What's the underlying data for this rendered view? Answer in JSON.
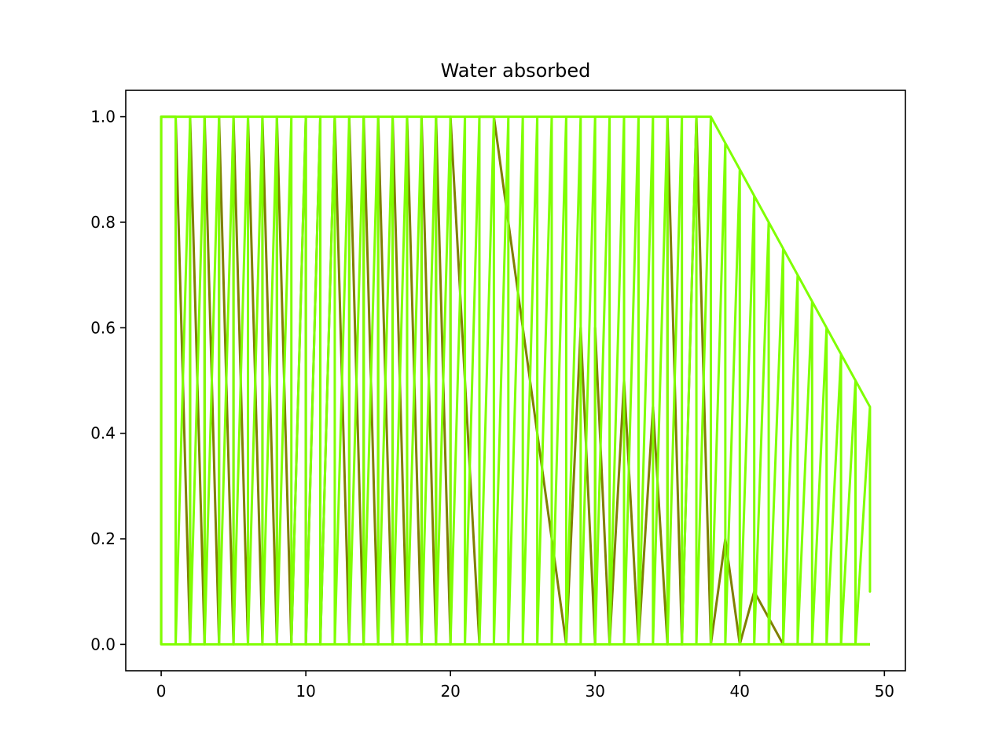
{
  "chart_data": {
    "type": "line",
    "title": "Water absorbed",
    "xlabel": "",
    "ylabel": "",
    "xlim": [
      -2.45,
      51.45
    ],
    "ylim": [
      -0.05,
      1.05
    ],
    "x_ticks": [
      0,
      10,
      20,
      30,
      40,
      50
    ],
    "x_tick_labels": [
      "0",
      "10",
      "20",
      "30",
      "40",
      "50"
    ],
    "y_ticks": [
      0.0,
      0.2,
      0.4,
      0.6,
      0.8,
      1.0
    ],
    "y_tick_labels": [
      "0.0",
      "0.2",
      "0.4",
      "0.6",
      "0.8",
      "1.0"
    ],
    "grid": false,
    "legend": "none",
    "colors": {
      "dark_series": "#7f7f00",
      "light_series": "#7fff00",
      "axes": "#000000"
    },
    "series": [
      {
        "color": "#7f7f00",
        "points": [
          [
            0,
            0
          ],
          [
            0,
            1
          ],
          [
            1,
            1
          ],
          [
            2,
            0
          ],
          [
            2,
            1
          ],
          [
            3,
            0
          ],
          [
            3,
            1
          ],
          [
            4,
            0
          ],
          [
            4,
            1
          ],
          [
            5,
            0
          ],
          [
            5,
            1
          ],
          [
            6,
            0
          ],
          [
            6,
            1
          ],
          [
            7,
            0
          ],
          [
            7,
            1
          ],
          [
            8,
            0
          ],
          [
            8,
            1
          ],
          [
            9,
            0
          ],
          [
            10,
            1
          ],
          [
            10,
            0
          ],
          [
            11,
            1
          ],
          [
            11,
            0
          ],
          [
            12,
            1
          ],
          [
            13,
            0
          ],
          [
            13,
            1
          ],
          [
            14,
            0
          ],
          [
            14,
            1
          ],
          [
            15,
            0
          ],
          [
            15,
            1
          ],
          [
            16,
            0
          ],
          [
            16,
            1
          ],
          [
            17,
            0
          ],
          [
            17,
            1
          ],
          [
            18,
            0
          ],
          [
            18,
            1
          ],
          [
            19,
            0
          ],
          [
            19,
            1
          ],
          [
            20,
            0
          ],
          [
            20,
            1
          ],
          [
            22,
            0
          ],
          [
            22,
            1
          ],
          [
            23,
            1
          ],
          [
            28,
            0
          ],
          [
            29,
            0.6
          ],
          [
            30,
            0
          ],
          [
            30,
            0.6
          ],
          [
            31,
            0
          ],
          [
            32,
            0.5
          ],
          [
            33,
            0
          ],
          [
            34,
            0.45
          ],
          [
            35,
            0
          ],
          [
            35,
            1
          ],
          [
            36,
            0
          ],
          [
            37,
            1
          ],
          [
            38,
            0
          ],
          [
            39,
            0.2
          ],
          [
            40,
            0
          ],
          [
            41,
            0.1
          ],
          [
            42,
            0.05
          ],
          [
            43,
            0
          ],
          [
            44,
            0
          ],
          [
            45,
            0
          ],
          [
            46,
            0
          ],
          [
            47,
            0
          ],
          [
            48,
            0
          ],
          [
            49,
            0
          ]
        ]
      },
      {
        "color": "#7fff00",
        "points": [
          [
            0,
            0
          ],
          [
            0,
            1
          ],
          [
            1,
            1
          ],
          [
            1,
            0
          ],
          [
            2,
            1
          ],
          [
            2,
            0
          ],
          [
            3,
            1
          ],
          [
            3,
            0
          ],
          [
            4,
            1
          ],
          [
            4,
            0
          ],
          [
            5,
            1
          ],
          [
            5,
            0
          ],
          [
            6,
            1
          ],
          [
            6,
            0
          ],
          [
            7,
            1
          ],
          [
            7,
            0
          ],
          [
            8,
            1
          ],
          [
            8,
            0
          ],
          [
            9,
            1
          ],
          [
            9,
            0
          ],
          [
            10,
            1
          ],
          [
            10,
            0
          ],
          [
            11,
            1
          ],
          [
            11,
            0
          ],
          [
            12,
            1
          ],
          [
            12,
            0
          ],
          [
            13,
            1
          ],
          [
            13,
            0
          ],
          [
            14,
            1
          ],
          [
            14,
            0
          ],
          [
            15,
            1
          ],
          [
            15,
            0
          ],
          [
            16,
            1
          ],
          [
            16,
            0
          ],
          [
            17,
            1
          ],
          [
            17,
            0
          ],
          [
            18,
            1
          ],
          [
            18,
            0
          ],
          [
            19,
            1
          ],
          [
            19,
            0
          ],
          [
            20,
            1
          ],
          [
            20,
            0
          ],
          [
            21,
            1
          ],
          [
            21,
            0
          ],
          [
            22,
            1
          ],
          [
            22,
            0
          ],
          [
            23,
            1
          ],
          [
            23,
            0
          ],
          [
            24,
            1
          ],
          [
            24,
            0
          ],
          [
            25,
            1
          ],
          [
            25,
            0
          ],
          [
            26,
            1
          ],
          [
            26,
            0
          ],
          [
            27,
            1
          ],
          [
            27,
            0
          ],
          [
            28,
            1
          ],
          [
            28,
            0
          ],
          [
            29,
            1
          ],
          [
            29,
            0
          ],
          [
            30,
            1
          ],
          [
            30,
            0
          ],
          [
            31,
            1
          ],
          [
            31,
            0
          ],
          [
            32,
            1
          ],
          [
            32,
            0
          ],
          [
            33,
            1
          ],
          [
            33,
            0
          ],
          [
            34,
            1
          ],
          [
            34,
            0
          ],
          [
            35,
            1
          ],
          [
            35,
            0
          ],
          [
            36,
            1
          ],
          [
            36,
            0
          ],
          [
            37,
            1
          ],
          [
            37,
            0
          ],
          [
            38,
            1
          ],
          [
            38,
            0
          ],
          [
            39,
            0.95
          ],
          [
            39,
            0
          ],
          [
            40,
            0.9
          ],
          [
            40,
            0
          ],
          [
            41,
            0.85
          ],
          [
            41,
            0
          ],
          [
            42,
            0.8
          ],
          [
            42,
            0
          ],
          [
            43,
            0.75
          ],
          [
            43,
            0
          ],
          [
            44,
            0.7
          ],
          [
            44,
            0
          ],
          [
            45,
            0.65
          ],
          [
            45,
            0
          ],
          [
            46,
            0.6
          ],
          [
            46,
            0
          ],
          [
            47,
            0.55
          ],
          [
            47,
            0
          ],
          [
            48,
            0.5
          ],
          [
            48,
            0
          ],
          [
            49,
            0.45
          ],
          [
            49,
            0.1
          ],
          [
            49,
            0.45
          ],
          [
            38,
            1
          ],
          [
            0,
            1
          ],
          [
            0,
            0
          ],
          [
            49,
            0
          ]
        ]
      }
    ]
  }
}
